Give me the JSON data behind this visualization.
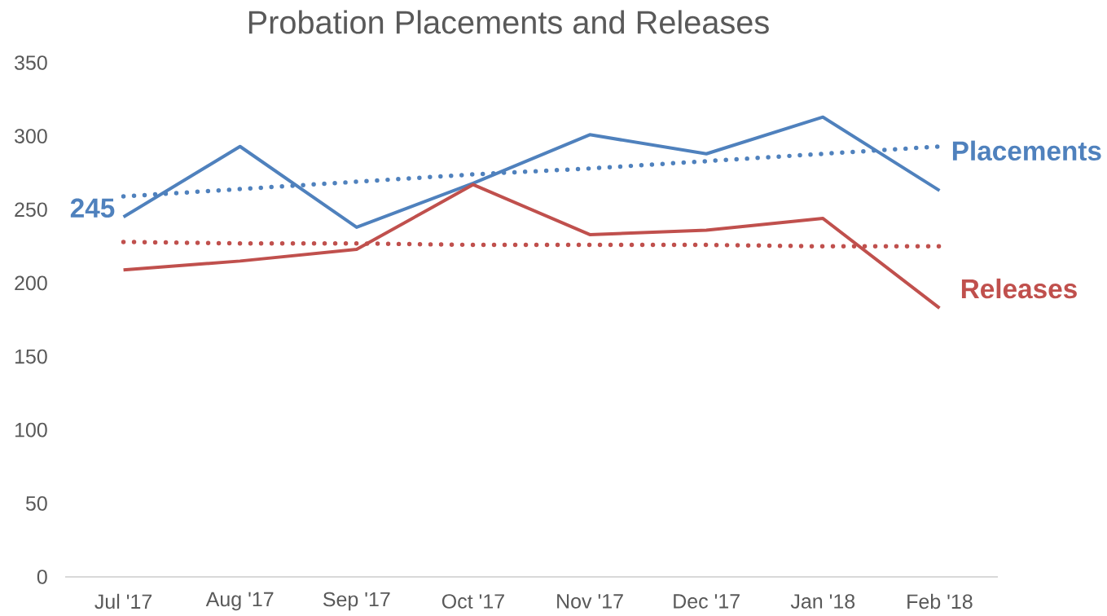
{
  "chart_data": {
    "type": "line",
    "title": "Probation Placements and Releases",
    "categories": [
      "Jul '17",
      "Aug '17",
      "Sep '17",
      "Oct '17",
      "Nov '17",
      "Dec '17",
      "Jan '18",
      "Feb '18"
    ],
    "series": [
      {
        "name": "Placements",
        "color": "#4f81bd",
        "values": [
          245,
          293,
          238,
          268,
          301,
          288,
          313,
          263
        ],
        "value_labels": [
          "245",
          null,
          null,
          null,
          null,
          null,
          null,
          null
        ]
      },
      {
        "name": "Releases",
        "color": "#c0504d",
        "values": [
          209,
          215,
          223,
          267,
          233,
          236,
          244,
          183
        ]
      },
      {
        "type": "line",
        "line_style": "dotted",
        "color": "#4f81bd",
        "values": [
          259,
          264,
          269,
          274,
          278,
          283,
          288,
          293
        ]
      },
      {
        "type": "line",
        "line_style": "dotted",
        "color": "#c0504d",
        "values": [
          228,
          227,
          227,
          226,
          226,
          226,
          225,
          225
        ]
      }
    ],
    "ylim": [
      0,
      350
    ],
    "yticks": [
      0,
      50,
      100,
      150,
      200,
      250,
      300,
      350
    ],
    "grid": false,
    "legend": false,
    "marker": "none",
    "line_style": "solid"
  }
}
